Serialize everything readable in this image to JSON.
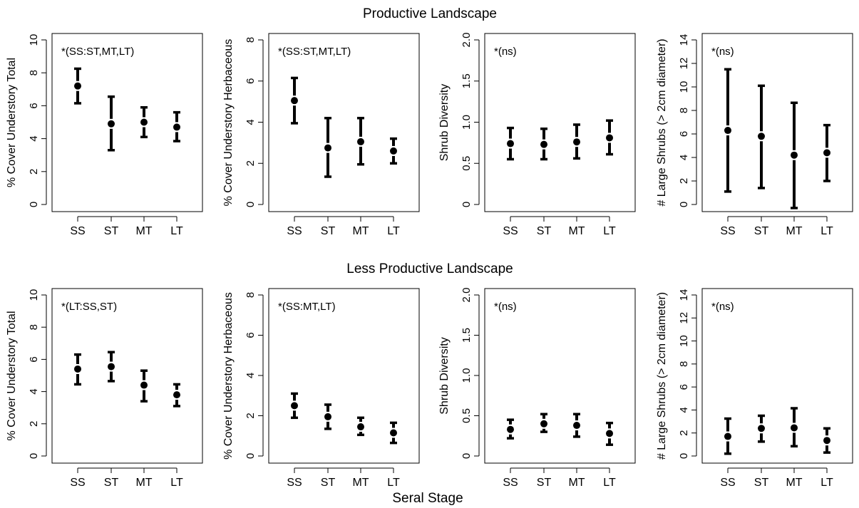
{
  "figure": {
    "row_titles": [
      "Productive Landscape",
      "Less Productive Landscape"
    ],
    "xlabel": "Seral Stage"
  },
  "chart_data": [
    {
      "type": "errorbar",
      "panel": "productive-cover-total",
      "categories": [
        "SS",
        "ST",
        "MT",
        "LT"
      ],
      "ylabel": "% Cover Understory Total",
      "ylim": [
        0,
        10
      ],
      "yticks": [
        0,
        2,
        4,
        6,
        8,
        10
      ],
      "annotation": "*(SS:ST,MT,LT)",
      "series": [
        {
          "mean": [
            7.2,
            4.9,
            5.0,
            4.7
          ],
          "lower": [
            6.15,
            3.3,
            4.1,
            3.85
          ],
          "upper": [
            8.25,
            6.55,
            5.9,
            5.6
          ]
        }
      ]
    },
    {
      "type": "errorbar",
      "panel": "productive-cover-herbaceous",
      "categories": [
        "SS",
        "ST",
        "MT",
        "LT"
      ],
      "ylabel": "% Cover Understory Herbaceous",
      "ylim": [
        0,
        8
      ],
      "yticks": [
        0,
        2,
        4,
        6,
        8
      ],
      "annotation": "*(SS:ST,MT,LT)",
      "series": [
        {
          "mean": [
            5.05,
            2.75,
            3.05,
            2.6
          ],
          "lower": [
            3.95,
            1.35,
            1.95,
            2.0
          ],
          "upper": [
            6.15,
            4.2,
            4.2,
            3.2
          ]
        }
      ]
    },
    {
      "type": "errorbar",
      "panel": "productive-shrub-diversity",
      "categories": [
        "SS",
        "ST",
        "MT",
        "LT"
      ],
      "ylabel": "Shrub Diversity",
      "ylim": [
        0,
        2
      ],
      "yticks": [
        "0",
        "0.5",
        "1.0",
        "1.5",
        "2.0"
      ],
      "annotation": "*(ns)",
      "series": [
        {
          "mean": [
            0.74,
            0.73,
            0.76,
            0.81
          ],
          "lower": [
            0.55,
            0.55,
            0.56,
            0.61
          ],
          "upper": [
            0.93,
            0.92,
            0.97,
            1.02
          ]
        }
      ]
    },
    {
      "type": "errorbar",
      "panel": "productive-large-shrubs",
      "categories": [
        "SS",
        "ST",
        "MT",
        "LT"
      ],
      "ylabel": "# Large Shrubs (> 2cm diameter)",
      "ylim": [
        0,
        14
      ],
      "yticks": [
        0,
        2,
        4,
        6,
        8,
        10,
        12,
        14
      ],
      "annotation": "*(ns)",
      "series": [
        {
          "mean": [
            6.3,
            5.8,
            4.2,
            4.4
          ],
          "lower": [
            1.1,
            1.4,
            -0.3,
            2.0
          ],
          "upper": [
            11.5,
            10.1,
            8.65,
            6.75
          ]
        }
      ]
    },
    {
      "type": "errorbar",
      "panel": "less-productive-cover-total",
      "categories": [
        "SS",
        "ST",
        "MT",
        "LT"
      ],
      "ylabel": "% Cover Understory Total",
      "ylim": [
        0,
        10
      ],
      "yticks": [
        0,
        2,
        4,
        6,
        8,
        10
      ],
      "annotation": "*(LT:SS,ST)",
      "series": [
        {
          "mean": [
            5.4,
            5.55,
            4.4,
            3.8
          ],
          "lower": [
            4.45,
            4.65,
            3.4,
            3.1
          ],
          "upper": [
            6.3,
            6.45,
            5.3,
            4.45
          ]
        }
      ]
    },
    {
      "type": "errorbar",
      "panel": "less-productive-cover-herbaceous",
      "categories": [
        "SS",
        "ST",
        "MT",
        "LT"
      ],
      "ylabel": "% Cover Understory Herbaceous",
      "ylim": [
        0,
        8
      ],
      "yticks": [
        0,
        2,
        4,
        6,
        8
      ],
      "annotation": "*(SS:MT,LT)",
      "series": [
        {
          "mean": [
            2.5,
            1.95,
            1.45,
            1.15
          ],
          "lower": [
            1.9,
            1.35,
            1.05,
            0.65
          ],
          "upper": [
            3.1,
            2.55,
            1.9,
            1.65
          ]
        }
      ]
    },
    {
      "type": "errorbar",
      "panel": "less-productive-shrub-diversity",
      "categories": [
        "SS",
        "ST",
        "MT",
        "LT"
      ],
      "ylabel": "Shrub Diversity",
      "ylim": [
        0,
        2
      ],
      "yticks": [
        "0",
        "0.5",
        "1.0",
        "1.5",
        "2.0"
      ],
      "annotation": "*(ns)",
      "series": [
        {
          "mean": [
            0.33,
            0.4,
            0.38,
            0.28
          ],
          "lower": [
            0.22,
            0.3,
            0.24,
            0.14
          ],
          "upper": [
            0.45,
            0.52,
            0.52,
            0.41
          ]
        }
      ]
    },
    {
      "type": "errorbar",
      "panel": "less-productive-large-shrubs",
      "categories": [
        "SS",
        "ST",
        "MT",
        "LT"
      ],
      "ylabel": "# Large Shrubs (> 2cm diameter)",
      "ylim": [
        0,
        14
      ],
      "yticks": [
        0,
        2,
        4,
        6,
        8,
        10,
        12,
        14
      ],
      "annotation": "*(ns)",
      "series": [
        {
          "mean": [
            1.7,
            2.4,
            2.45,
            1.35
          ],
          "lower": [
            0.2,
            1.25,
            0.85,
            0.3
          ],
          "upper": [
            3.25,
            3.5,
            4.15,
            2.4
          ]
        }
      ]
    }
  ]
}
